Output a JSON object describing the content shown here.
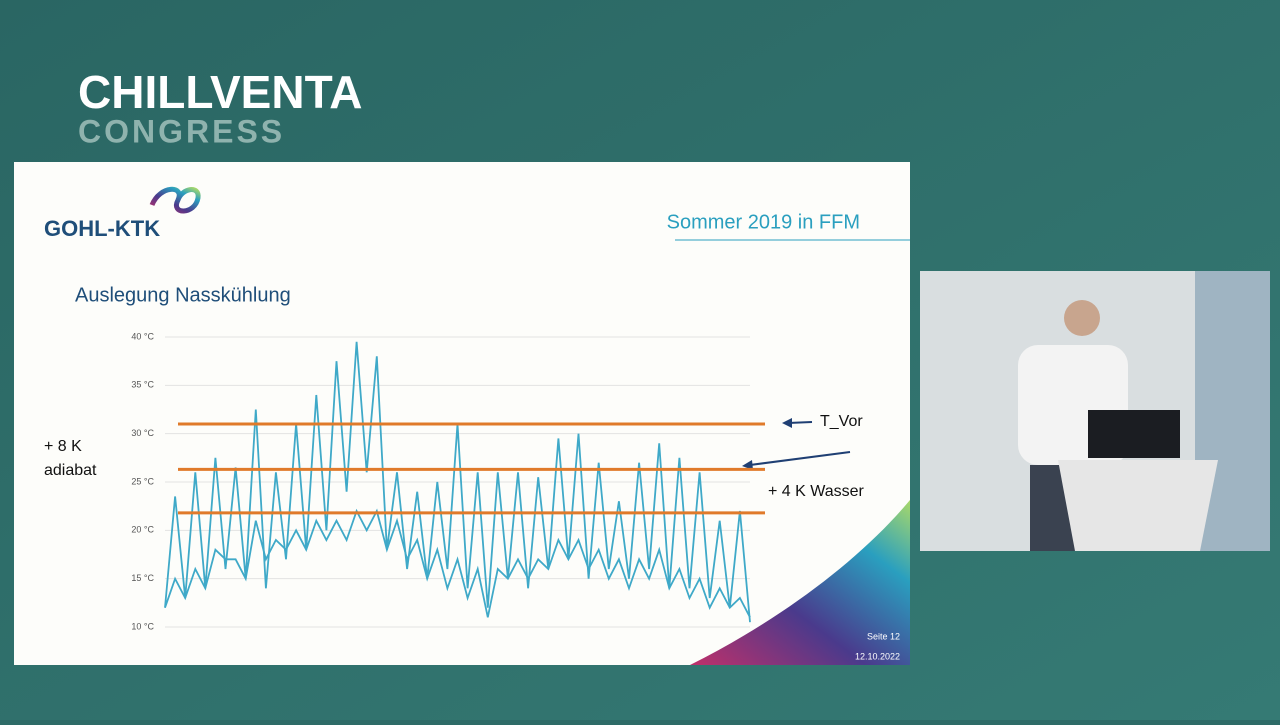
{
  "header": {
    "title": "CHILLVENTA",
    "subtitle": "CONGRESS"
  },
  "slide": {
    "logo": "GOHL-KTK",
    "title": "Sommer 2019 in FFM",
    "heading": "Auslegung Nasskühlung",
    "annotations": {
      "left": [
        "+ 8 K",
        "adiabat"
      ],
      "t_vor": "T_Vor",
      "water": "+ 4 K Wasser"
    },
    "footer": {
      "page": "Seite 12",
      "date": "12.10.2022"
    }
  },
  "chart_data": {
    "type": "line",
    "ylim": [
      10,
      40
    ],
    "yticks": [
      {
        "value": 10,
        "label": "10 °C"
      },
      {
        "value": 15,
        "label": "15 °C"
      },
      {
        "value": 20,
        "label": "20 °C"
      },
      {
        "value": 25,
        "label": "25 °C"
      },
      {
        "value": 30,
        "label": "30 °C"
      },
      {
        "value": 35,
        "label": "35 °C"
      },
      {
        "value": 40,
        "label": "40 °C"
      }
    ],
    "grid": true,
    "series": [
      {
        "color": "#3fa9c8",
        "values": [
          12,
          23.5,
          13,
          26,
          14,
          27.5,
          16,
          26.5,
          15,
          32.5,
          14,
          26,
          17,
          31,
          18,
          34,
          20,
          37.5,
          24,
          39.5,
          26,
          38,
          18,
          26,
          16,
          24,
          15,
          25,
          16,
          31,
          14,
          26,
          12,
          26,
          15,
          26,
          14,
          25.5,
          16,
          29.5,
          17,
          30,
          15,
          27,
          16,
          23,
          15,
          27,
          16,
          29,
          14,
          27.5,
          14,
          26,
          13,
          21,
          12,
          22,
          10.5
        ]
      },
      {
        "color": "#3fa9c8",
        "values": [
          12,
          15,
          13,
          16,
          14,
          18,
          17,
          17,
          15,
          21,
          17,
          19,
          18,
          20,
          18,
          21,
          19,
          21,
          19,
          22,
          20,
          22,
          18,
          21,
          17,
          19,
          15,
          18,
          14,
          17,
          13,
          16,
          11,
          16,
          15,
          17,
          15,
          17,
          16,
          19,
          17,
          19,
          16,
          18,
          15,
          17,
          14,
          17,
          15,
          18,
          14,
          16,
          13,
          15,
          12,
          14,
          12,
          13,
          11
        ]
      }
    ],
    "reference_lines": [
      31,
      26.3,
      21.8
    ],
    "reference_color": "#e07a2a"
  }
}
